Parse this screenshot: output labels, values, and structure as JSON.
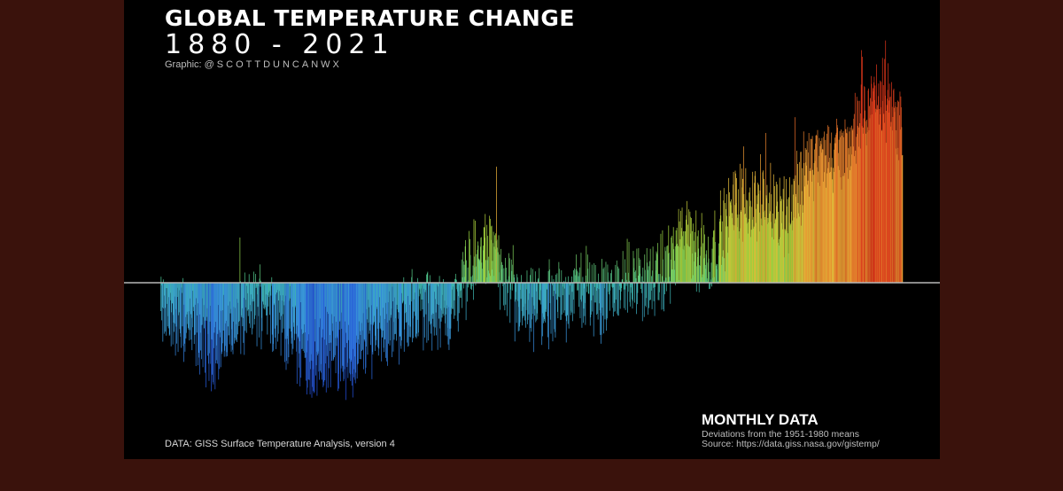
{
  "header": {
    "title": "GLOBAL TEMPERATURE CHANGE",
    "subtitle": "1880 - 2021",
    "credit_prefix": "Graphic: ",
    "credit_handle": "@SCOTTDUNCANWX"
  },
  "footer": {
    "data_source": "DATA: GISS Surface Temperature Analysis, version 4",
    "box_title": "MONTHLY DATA",
    "box_line1": "Deviations from the 1951-1980 means",
    "box_line2": "Source: https://data.giss.nasa.gov/gistemp/"
  },
  "colors": {
    "page_background": "#3a120c",
    "panel_background": "#000000",
    "baseline": "#b8b8b8",
    "cold_deep": "#1f3fd6",
    "cold": "#3a9ad9",
    "neutral": "#3fbf9a",
    "mild_warm": "#9bd13a",
    "warm": "#e8b83a",
    "hot": "#d8341a"
  },
  "chart_data": {
    "type": "bar",
    "frequency": "monthly",
    "x_range": [
      1880,
      2021
    ],
    "x_unit": "year",
    "y_unit": "°C anomaly vs 1951-1980 mean (estimated)",
    "ylim": [
      -0.9,
      1.45
    ],
    "baseline_value": 0,
    "grid": false,
    "legend": "none",
    "annual_anomaly_estimates": [
      {
        "year": 1880,
        "value": -0.17
      },
      {
        "year": 1885,
        "value": -0.24
      },
      {
        "year": 1890,
        "value": -0.36
      },
      {
        "year": 1895,
        "value": -0.22
      },
      {
        "year": 1900,
        "value": -0.08
      },
      {
        "year": 1905,
        "value": -0.28
      },
      {
        "year": 1909,
        "value": -0.47
      },
      {
        "year": 1912,
        "value": -0.36
      },
      {
        "year": 1917,
        "value": -0.46
      },
      {
        "year": 1920,
        "value": -0.27
      },
      {
        "year": 1925,
        "value": -0.22
      },
      {
        "year": 1930,
        "value": -0.14
      },
      {
        "year": 1935,
        "value": -0.2
      },
      {
        "year": 1940,
        "value": 0.12
      },
      {
        "year": 1944,
        "value": 0.2
      },
      {
        "year": 1946,
        "value": -0.07
      },
      {
        "year": 1950,
        "value": -0.17
      },
      {
        "year": 1955,
        "value": -0.14
      },
      {
        "year": 1960,
        "value": -0.03
      },
      {
        "year": 1965,
        "value": -0.1
      },
      {
        "year": 1970,
        "value": 0.03
      },
      {
        "year": 1975,
        "value": -0.01
      },
      {
        "year": 1980,
        "value": 0.26
      },
      {
        "year": 1985,
        "value": 0.12
      },
      {
        "year": 1990,
        "value": 0.45
      },
      {
        "year": 1995,
        "value": 0.45
      },
      {
        "year": 2000,
        "value": 0.39
      },
      {
        "year": 2005,
        "value": 0.68
      },
      {
        "year": 2010,
        "value": 0.72
      },
      {
        "year": 2015,
        "value": 0.9
      },
      {
        "year": 2016,
        "value": 1.02
      },
      {
        "year": 2019,
        "value": 0.98
      },
      {
        "year": 2020,
        "value": 1.02
      },
      {
        "year": 2021,
        "value": 0.85
      }
    ]
  }
}
